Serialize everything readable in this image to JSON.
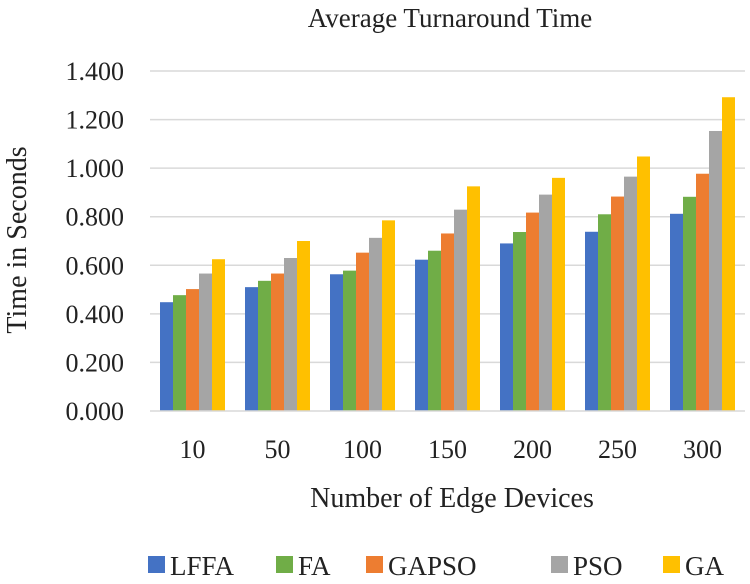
{
  "chart_data": {
    "type": "bar",
    "title": "Average Turnaround Time",
    "xlabel": "Number of Edge Devices",
    "ylabel": "Time in Seconds",
    "ylim": [
      0,
      1.4
    ],
    "yticks": [
      "0.000",
      "0.200",
      "0.400",
      "0.600",
      "0.800",
      "1.000",
      "1.200",
      "1.400"
    ],
    "grid": true,
    "legend_position": "bottom",
    "categories": [
      "10",
      "50",
      "100",
      "150",
      "200",
      "250",
      "300"
    ],
    "series": [
      {
        "name": "LFFA",
        "color": "#4472C4",
        "values": [
          0.448,
          0.51,
          0.563,
          0.623,
          0.69,
          0.738,
          0.812
        ]
      },
      {
        "name": "FA",
        "color": "#70AD47",
        "values": [
          0.477,
          0.536,
          0.578,
          0.66,
          0.737,
          0.81,
          0.882
        ]
      },
      {
        "name": "GAPSO",
        "color": "#ED7D31",
        "values": [
          0.502,
          0.566,
          0.652,
          0.731,
          0.817,
          0.883,
          0.977
        ]
      },
      {
        "name": "PSO",
        "color": "#A5A5A5",
        "values": [
          0.566,
          0.63,
          0.713,
          0.829,
          0.891,
          0.965,
          1.153
        ]
      },
      {
        "name": "GA",
        "color": "#FFC000",
        "values": [
          0.625,
          0.7,
          0.785,
          0.925,
          0.96,
          1.048,
          1.292
        ]
      }
    ]
  }
}
